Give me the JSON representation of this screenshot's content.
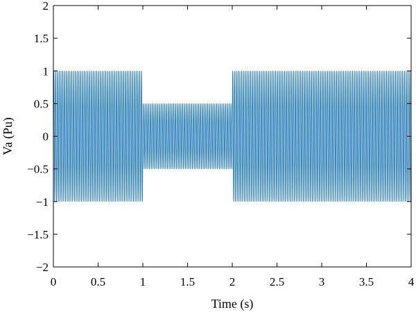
{
  "chart_data": {
    "type": "line",
    "title": "",
    "xlabel": "Time (s)",
    "ylabel": "Va (Pu)",
    "xlim": [
      0,
      4
    ],
    "ylim": [
      -2,
      2
    ],
    "x_ticks": [
      "0",
      "0.5",
      "1",
      "1.5",
      "2",
      "2.5",
      "3",
      "3.5",
      "4"
    ],
    "y_ticks": [
      "2",
      "1.5",
      "1",
      "0.5",
      "0",
      "−0.5",
      "−1",
      "−1.5",
      "−2"
    ],
    "x_tick_values": [
      0,
      0.5,
      1,
      1.5,
      2,
      2.5,
      3,
      3.5,
      4
    ],
    "y_tick_values": [
      2,
      1.5,
      1,
      0.5,
      0,
      -0.5,
      -1,
      -1.5,
      -2
    ],
    "grid": false,
    "series": [
      {
        "color": "#1f77b4",
        "waveform": "sinusoid",
        "frequency_hz": 50,
        "segments": [
          {
            "t_start": 0,
            "t_end": 1,
            "amplitude": 1.0
          },
          {
            "t_start": 1,
            "t_end": 2,
            "amplitude": 0.5
          },
          {
            "t_start": 2,
            "t_end": 4,
            "amplitude": 1.0
          }
        ]
      }
    ]
  }
}
